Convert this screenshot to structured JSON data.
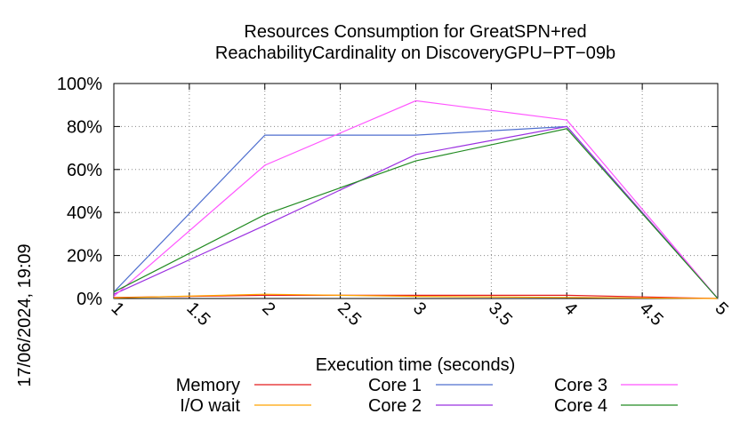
{
  "chart_data": {
    "type": "line",
    "title_lines": [
      "Resources Consumption for GreatSPN+red",
      "ReachabilityCardinality on DiscoveryGPU−PT−09b"
    ],
    "xlabel": "Execution time (seconds)",
    "ylabel": "",
    "side_label": "17/06/2024, 19:09",
    "xlim": [
      1,
      5
    ],
    "ylim": [
      0,
      100
    ],
    "x_ticks": [
      "1",
      "1.5",
      "2",
      "2.5",
      "3",
      "3.5",
      "4",
      "4.5",
      "5"
    ],
    "y_ticks": [
      "0%",
      "20%",
      "40%",
      "60%",
      "80%",
      "100%"
    ],
    "grid": true,
    "legend_position": "bottom",
    "x": [
      1,
      2,
      3,
      4,
      5
    ],
    "series": [
      {
        "name": "Memory",
        "color": "#e41a1c",
        "values": [
          0.5,
          1.5,
          1.5,
          1.5,
          0
        ]
      },
      {
        "name": "I/O wait",
        "color": "#ffa500",
        "values": [
          0.3,
          2.0,
          1.0,
          0.5,
          0
        ]
      },
      {
        "name": "Core 1",
        "color": "#4f6fcf",
        "values": [
          3,
          76,
          76,
          80,
          0
        ]
      },
      {
        "name": "Core 2",
        "color": "#9b30e0",
        "values": [
          2,
          34,
          67,
          80,
          0
        ]
      },
      {
        "name": "Core 3",
        "color": "#ff55ff",
        "values": [
          1,
          62,
          92,
          83,
          0
        ]
      },
      {
        "name": "Core 4",
        "color": "#228b22",
        "values": [
          3,
          39,
          64,
          79,
          0
        ]
      }
    ]
  }
}
